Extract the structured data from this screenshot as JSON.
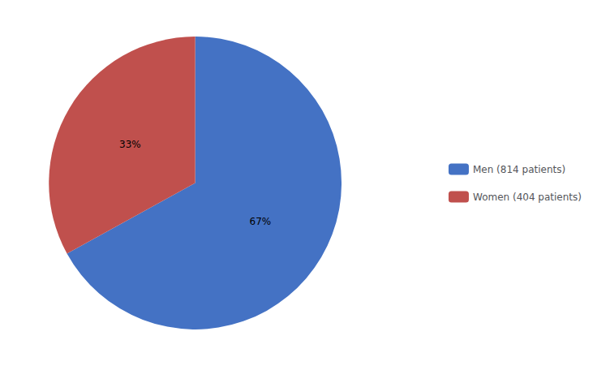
{
  "chart_data": {
    "type": "pie",
    "categories": [
      "Men (814 patients)",
      "Women (404 patients)"
    ],
    "values": [
      67,
      33
    ],
    "value_labels": [
      "67%",
      "33%"
    ],
    "colors": [
      "#4472C4",
      "#C0504D"
    ],
    "data_labels": true,
    "legend": "right"
  }
}
